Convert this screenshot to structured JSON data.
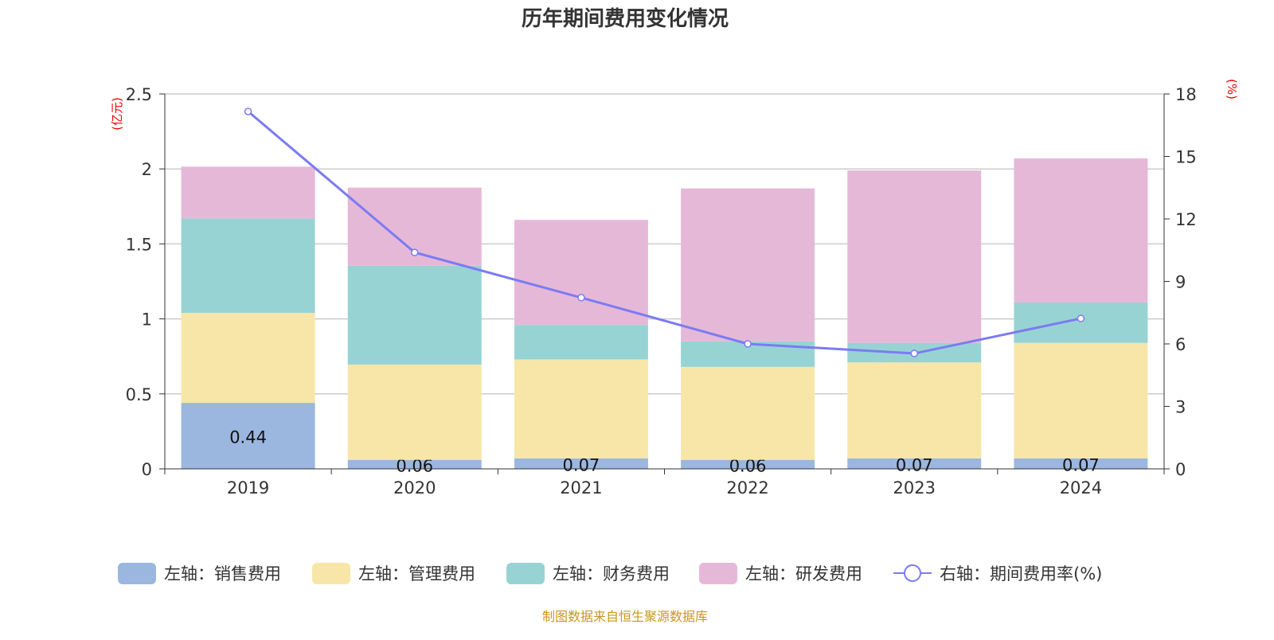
{
  "chart_data": {
    "type": "bar",
    "title": "历年期间费用变化情况",
    "categories": [
      "2019",
      "2020",
      "2021",
      "2022",
      "2023",
      "2024"
    ],
    "left_axis": {
      "unit": "(亿元)",
      "ylim": [
        0,
        2.5
      ],
      "ticks": [
        "0",
        "0.5",
        "1",
        "1.5",
        "2",
        "2.5"
      ],
      "tick_values": [
        0,
        0.5,
        1,
        1.5,
        2,
        2.5
      ]
    },
    "right_axis": {
      "unit": "(%)",
      "ylim": [
        0,
        18
      ],
      "ticks": [
        "0",
        "3",
        "6",
        "9",
        "12",
        "15",
        "18"
      ],
      "tick_values": [
        0,
        3,
        6,
        9,
        12,
        15,
        18
      ]
    },
    "stacked": true,
    "series": [
      {
        "name": "左轴：销售费用",
        "color": "#9bb7e0",
        "values": [
          0.44,
          0.06,
          0.07,
          0.06,
          0.07,
          0.07
        ],
        "labels": [
          "0.44",
          "0.06",
          "0.07",
          "0.06",
          "0.07",
          "0.07"
        ]
      },
      {
        "name": "左轴：管理费用",
        "color": "#f7e6a7",
        "values": [
          0.6,
          0.635,
          0.66,
          0.62,
          0.64,
          0.77
        ]
      },
      {
        "name": "左轴：财务费用",
        "color": "#98d3d4",
        "values": [
          0.63,
          0.66,
          0.23,
          0.17,
          0.13,
          0.27
        ]
      },
      {
        "name": "左轴：研发费用",
        "color": "#e6b8d8",
        "values": [
          0.345,
          0.52,
          0.7,
          1.02,
          1.15,
          0.96
        ]
      }
    ],
    "line": {
      "name": "右轴：期间费用率(%)",
      "color": "#7b7bf2",
      "values": [
        17.16,
        10.39,
        8.22,
        6.0,
        5.54,
        7.22
      ]
    },
    "grid": true,
    "legend": "bottom"
  },
  "footer": "制图数据来自恒生聚源数据库"
}
